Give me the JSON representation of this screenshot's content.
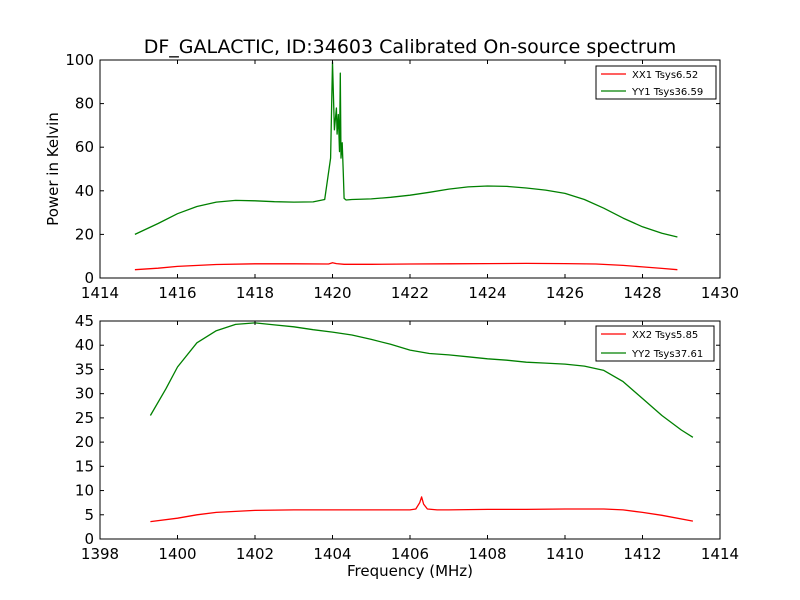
{
  "title": "DF_GALACTIC, ID:34603 Calibrated On-source spectrum",
  "colors": {
    "xx": "#ff0000",
    "yy": "#008000",
    "axes": "#000000",
    "background": "#ffffff"
  },
  "chart_data": [
    {
      "type": "line",
      "ylabel": "Power in Kelvin",
      "xlabel": "",
      "xlim": [
        1414,
        1430
      ],
      "ylim": [
        0,
        100
      ],
      "xticks": [
        "1414",
        "1416",
        "1418",
        "1420",
        "1422",
        "1424",
        "1426",
        "1428",
        "1430"
      ],
      "yticks": [
        "0",
        "20",
        "40",
        "60",
        "80",
        "100"
      ],
      "legend_position": "top-right",
      "grid": false,
      "series": [
        {
          "name": "XX1 Tsys6.52",
          "color": "#ff0000",
          "x": [
            1414.9,
            1415.5,
            1416.0,
            1417.0,
            1418.0,
            1419.0,
            1419.9,
            1420.0,
            1420.1,
            1420.3,
            1421.0,
            1422.0,
            1423.0,
            1424.0,
            1425.0,
            1426.0,
            1426.8,
            1427.5,
            1428.0,
            1428.5,
            1428.9
          ],
          "y": [
            3.8,
            4.5,
            5.3,
            6.2,
            6.5,
            6.5,
            6.4,
            7.0,
            6.6,
            6.3,
            6.3,
            6.4,
            6.5,
            6.6,
            6.7,
            6.6,
            6.4,
            5.8,
            5.1,
            4.4,
            3.8
          ]
        },
        {
          "name": "YY1 Tsys36.59",
          "color": "#008000",
          "x": [
            1414.9,
            1415.5,
            1416.0,
            1416.5,
            1417.0,
            1417.5,
            1418.0,
            1418.5,
            1419.0,
            1419.5,
            1419.8,
            1419.95,
            1420.0,
            1420.05,
            1420.1,
            1420.12,
            1420.15,
            1420.18,
            1420.2,
            1420.22,
            1420.25,
            1420.28,
            1420.3,
            1420.35,
            1420.5,
            1421.0,
            1421.5,
            1422.0,
            1422.5,
            1423.0,
            1423.5,
            1424.0,
            1424.5,
            1425.0,
            1425.5,
            1426.0,
            1426.5,
            1427.0,
            1427.5,
            1428.0,
            1428.5,
            1428.9
          ],
          "y": [
            20.0,
            25.0,
            29.5,
            32.8,
            34.8,
            35.6,
            35.4,
            35.0,
            34.8,
            34.9,
            36.0,
            55.0,
            99.0,
            68.0,
            78.0,
            66.0,
            75.0,
            58.0,
            94.0,
            55.0,
            62.0,
            48.0,
            36.5,
            35.8,
            36.0,
            36.3,
            37.0,
            38.0,
            39.3,
            40.8,
            41.8,
            42.2,
            42.0,
            41.3,
            40.3,
            38.8,
            36.0,
            32.0,
            27.5,
            23.5,
            20.5,
            18.8
          ]
        }
      ]
    },
    {
      "type": "line",
      "ylabel": "",
      "xlabel": "Frequency (MHz)",
      "xlim": [
        1398,
        1414
      ],
      "ylim": [
        0,
        45
      ],
      "xticks": [
        "1398",
        "1400",
        "1402",
        "1404",
        "1406",
        "1408",
        "1410",
        "1412",
        "1414"
      ],
      "yticks": [
        "0",
        "5",
        "10",
        "15",
        "20",
        "25",
        "30",
        "35",
        "40",
        "45"
      ],
      "legend_position": "top-right",
      "grid": false,
      "series": [
        {
          "name": "XX2 Tsys5.85",
          "color": "#ff0000",
          "x": [
            1399.3,
            1400.0,
            1400.5,
            1401.0,
            1402.0,
            1403.0,
            1404.0,
            1405.0,
            1406.0,
            1406.15,
            1406.25,
            1406.3,
            1406.35,
            1406.45,
            1406.7,
            1407.0,
            1408.0,
            1409.0,
            1410.0,
            1411.0,
            1411.5,
            1412.0,
            1412.5,
            1413.3
          ],
          "y": [
            3.6,
            4.3,
            5.0,
            5.5,
            5.9,
            6.0,
            6.0,
            6.0,
            6.0,
            6.2,
            7.5,
            8.7,
            7.2,
            6.2,
            6.0,
            6.0,
            6.1,
            6.1,
            6.2,
            6.2,
            6.0,
            5.5,
            4.9,
            3.7
          ],
          "peak_note": "spike near 1406.3"
        },
        {
          "name": "YY2 Tsys37.61",
          "color": "#008000",
          "x": [
            1399.3,
            1399.7,
            1400.0,
            1400.5,
            1401.0,
            1401.5,
            1402.0,
            1402.5,
            1403.0,
            1403.5,
            1404.0,
            1404.5,
            1405.0,
            1405.5,
            1406.0,
            1406.5,
            1407.0,
            1407.5,
            1408.0,
            1408.5,
            1409.0,
            1409.5,
            1410.0,
            1410.5,
            1411.0,
            1411.5,
            1412.0,
            1412.5,
            1413.0,
            1413.3
          ],
          "y": [
            25.5,
            31.0,
            35.5,
            40.5,
            43.0,
            44.3,
            44.6,
            44.2,
            43.8,
            43.2,
            42.7,
            42.1,
            41.2,
            40.2,
            39.0,
            38.3,
            38.0,
            37.6,
            37.2,
            36.9,
            36.5,
            36.3,
            36.1,
            35.7,
            34.8,
            32.5,
            29.0,
            25.5,
            22.5,
            21.0
          ]
        }
      ]
    }
  ]
}
